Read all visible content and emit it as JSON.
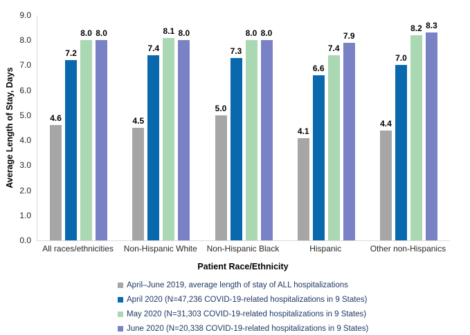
{
  "chart_data": {
    "type": "bar",
    "title": "",
    "xlabel": "Patient Race/Ethnicity",
    "ylabel": "Average Length of Stay, Days",
    "ylim": [
      0,
      9
    ],
    "yticks": [
      "0.0",
      "1.0",
      "2.0",
      "3.0",
      "4.0",
      "5.0",
      "6.0",
      "7.0",
      "8.0",
      "9.0"
    ],
    "grid": false,
    "legend_position": "bottom-left",
    "value_labels_shown": true,
    "categories": [
      "All races/ethnicities",
      "Non-Hispanic White",
      "Non-Hispanic Black",
      "Hispanic",
      "Other non-Hispanics"
    ],
    "series": [
      {
        "name": "April–June 2019, average length of stay of ALL hospitalizations",
        "color": "#A6A6A6",
        "values": [
          4.6,
          4.5,
          5.0,
          4.1,
          4.4
        ]
      },
      {
        "name": "April 2020 (N=47,236 COVID-19-related hospitalizations in 9 States)",
        "color": "#0A69AE",
        "values": [
          7.2,
          7.4,
          7.3,
          6.6,
          7.0
        ]
      },
      {
        "name": "May 2020 (N=31,303 COVID-19-related hospitalizations in 9 States)",
        "color": "#A9D8B2",
        "values": [
          8.0,
          8.1,
          8.0,
          7.4,
          8.2
        ]
      },
      {
        "name": "June 2020 (N=20,338 COVID-19-related hospitalizations in 9 States)",
        "color": "#7A82C6",
        "values": [
          8.0,
          8.0,
          8.0,
          7.9,
          8.3
        ]
      }
    ],
    "colors": {
      "axis_line": "#D9D9D9",
      "axis_text": "#262626",
      "legend_text": "#1F3864",
      "data_label": "#000000"
    }
  }
}
